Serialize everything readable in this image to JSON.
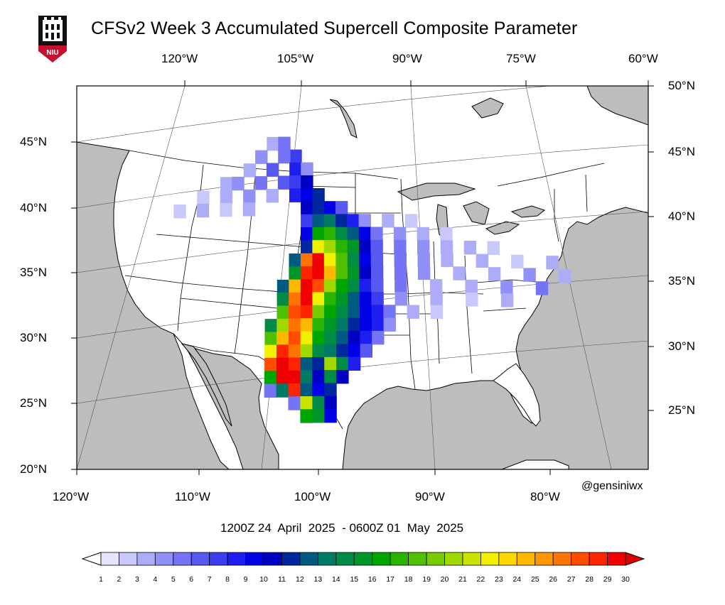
{
  "header": {
    "title": "CFSv2 Week 3 Accumulated Supercell Composite Parameter",
    "logo_text": "NIU",
    "logo_colors": {
      "red": "#c8102e",
      "black": "#111111"
    }
  },
  "map": {
    "projection": "lambert-conformal",
    "region": "Continental United States",
    "ocean_color": "#bdbdbd",
    "land_color": "#ffffff",
    "border_color": "#000000",
    "top_lon_labels": [
      "120°W",
      "105°W",
      "90°W",
      "75°W",
      "60°W"
    ],
    "bottom_lon_labels": [
      "120°W",
      "110°W",
      "100°W",
      "90°W",
      "80°W"
    ],
    "left_lat_labels": [
      "45°N",
      "40°N",
      "35°N",
      "30°N",
      "25°N",
      "20°N"
    ],
    "right_lat_labels": [
      "50°N",
      "45°N",
      "40°N",
      "35°N",
      "30°N",
      "25°N"
    ]
  },
  "period": "1200Z 24  April  2025  - 0600Z 01  May  2025",
  "credit": "@gensiniwx",
  "colorbar": {
    "labels": [
      "1",
      "2",
      "3",
      "4",
      "5",
      "6",
      "7",
      "8",
      "9",
      "10",
      "11",
      "12",
      "13",
      "14",
      "15",
      "16",
      "17",
      "18",
      "19",
      "20",
      "21",
      "22",
      "23",
      "24",
      "25",
      "26",
      "27",
      "28",
      "29",
      "30"
    ],
    "colors": [
      "#ffffff",
      "#e4e4fc",
      "#c8c8fa",
      "#acacf8",
      "#9090f6",
      "#7474f4",
      "#5858f2",
      "#3c3cf0",
      "#1e1ef0",
      "#0000e6",
      "#0000c4",
      "#00289e",
      "#005a82",
      "#007a64",
      "#008c46",
      "#009628",
      "#00a600",
      "#28b400",
      "#50c000",
      "#78cc00",
      "#a0d800",
      "#c8e400",
      "#f0f000",
      "#ffd800",
      "#ffb800",
      "#ff9800",
      "#ff7400",
      "#ff4c00",
      "#ff2400",
      "#f00000",
      "#dc0000"
    ]
  },
  "scp_field": {
    "units": "accumulated SCP",
    "blocks": [
      {
        "lon": -104,
        "lat": 45,
        "v": 3
      },
      {
        "lon": -103,
        "lat": 45,
        "v": 5
      },
      {
        "lon": -102,
        "lat": 44,
        "v": 7
      },
      {
        "lon": -103,
        "lat": 44,
        "v": 5
      },
      {
        "lon": -105,
        "lat": 44,
        "v": 4
      },
      {
        "lon": -106,
        "lat": 43,
        "v": 3
      },
      {
        "lon": -104,
        "lat": 43,
        "v": 6
      },
      {
        "lon": -102,
        "lat": 43,
        "v": 8
      },
      {
        "lon": -101,
        "lat": 43,
        "v": 4
      },
      {
        "lon": -108,
        "lat": 42,
        "v": 3
      },
      {
        "lon": -107,
        "lat": 42,
        "v": 4
      },
      {
        "lon": -105,
        "lat": 42,
        "v": 5
      },
      {
        "lon": -103,
        "lat": 42,
        "v": 6
      },
      {
        "lon": -102,
        "lat": 42,
        "v": 7
      },
      {
        "lon": -101,
        "lat": 42,
        "v": 10
      },
      {
        "lon": -110,
        "lat": 41,
        "v": 2
      },
      {
        "lon": -108,
        "lat": 41,
        "v": 3
      },
      {
        "lon": -106,
        "lat": 41,
        "v": 4
      },
      {
        "lon": -104,
        "lat": 41,
        "v": 3
      },
      {
        "lon": -102,
        "lat": 41,
        "v": 8
      },
      {
        "lon": -101,
        "lat": 41,
        "v": 9
      },
      {
        "lon": -100,
        "lat": 41,
        "v": 11
      },
      {
        "lon": -112,
        "lat": 40,
        "v": 2
      },
      {
        "lon": -110,
        "lat": 40,
        "v": 3
      },
      {
        "lon": -108,
        "lat": 40,
        "v": 2
      },
      {
        "lon": -106,
        "lat": 40,
        "v": 3
      },
      {
        "lon": -101,
        "lat": 40,
        "v": 10
      },
      {
        "lon": -100,
        "lat": 40,
        "v": 11
      },
      {
        "lon": -99,
        "lat": 40,
        "v": 9
      },
      {
        "lon": -98,
        "lat": 40,
        "v": 6
      },
      {
        "lon": -101,
        "lat": 39,
        "v": 7
      },
      {
        "lon": -100,
        "lat": 39,
        "v": 12
      },
      {
        "lon": -99,
        "lat": 39,
        "v": 13
      },
      {
        "lon": -98,
        "lat": 39,
        "v": 11
      },
      {
        "lon": -97,
        "lat": 39,
        "v": 8
      },
      {
        "lon": -96,
        "lat": 39,
        "v": 4
      },
      {
        "lon": -94,
        "lat": 39,
        "v": 3
      },
      {
        "lon": -92,
        "lat": 39,
        "v": 2
      },
      {
        "lon": -101,
        "lat": 38,
        "v": 9
      },
      {
        "lon": -100,
        "lat": 38,
        "v": 16
      },
      {
        "lon": -99,
        "lat": 38,
        "v": 17
      },
      {
        "lon": -98,
        "lat": 38,
        "v": 14
      },
      {
        "lon": -97,
        "lat": 38,
        "v": 12
      },
      {
        "lon": -96,
        "lat": 38,
        "v": 9
      },
      {
        "lon": -95,
        "lat": 38,
        "v": 5
      },
      {
        "lon": -93,
        "lat": 38,
        "v": 4
      },
      {
        "lon": -91,
        "lat": 38,
        "v": 3
      },
      {
        "lon": -89,
        "lat": 38,
        "v": 2
      },
      {
        "lon": -101,
        "lat": 37,
        "v": 11
      },
      {
        "lon": -100,
        "lat": 37,
        "v": 22
      },
      {
        "lon": -99,
        "lat": 37,
        "v": 20
      },
      {
        "lon": -98,
        "lat": 37,
        "v": 17
      },
      {
        "lon": -97,
        "lat": 37,
        "v": 15
      },
      {
        "lon": -96,
        "lat": 37,
        "v": 10
      },
      {
        "lon": -95,
        "lat": 37,
        "v": 6
      },
      {
        "lon": -93,
        "lat": 37,
        "v": 5
      },
      {
        "lon": -91,
        "lat": 37,
        "v": 4
      },
      {
        "lon": -89,
        "lat": 37,
        "v": 3
      },
      {
        "lon": -87,
        "lat": 37,
        "v": 3
      },
      {
        "lon": -85,
        "lat": 37,
        "v": 2
      },
      {
        "lon": -102,
        "lat": 36,
        "v": 12
      },
      {
        "lon": -101,
        "lat": 36,
        "v": 26
      },
      {
        "lon": -100,
        "lat": 36,
        "v": 29
      },
      {
        "lon": -99,
        "lat": 36,
        "v": 22
      },
      {
        "lon": -98,
        "lat": 36,
        "v": 18
      },
      {
        "lon": -97,
        "lat": 36,
        "v": 14
      },
      {
        "lon": -96,
        "lat": 36,
        "v": 9
      },
      {
        "lon": -95,
        "lat": 36,
        "v": 6
      },
      {
        "lon": -93,
        "lat": 36,
        "v": 5
      },
      {
        "lon": -91,
        "lat": 36,
        "v": 4
      },
      {
        "lon": -89,
        "lat": 36,
        "v": 3
      },
      {
        "lon": -86,
        "lat": 36,
        "v": 3
      },
      {
        "lon": -83,
        "lat": 36,
        "v": 2
      },
      {
        "lon": -80,
        "lat": 36,
        "v": 3
      },
      {
        "lon": -102,
        "lat": 35,
        "v": 15
      },
      {
        "lon": -101,
        "lat": 35,
        "v": 28
      },
      {
        "lon": -100,
        "lat": 35,
        "v": 29
      },
      {
        "lon": -99,
        "lat": 35,
        "v": 24
      },
      {
        "lon": -98,
        "lat": 35,
        "v": 18
      },
      {
        "lon": -97,
        "lat": 35,
        "v": 15
      },
      {
        "lon": -96,
        "lat": 35,
        "v": 10
      },
      {
        "lon": -95,
        "lat": 35,
        "v": 6
      },
      {
        "lon": -93,
        "lat": 35,
        "v": 5
      },
      {
        "lon": -91,
        "lat": 35,
        "v": 4
      },
      {
        "lon": -88,
        "lat": 35,
        "v": 3
      },
      {
        "lon": -85,
        "lat": 35,
        "v": 3
      },
      {
        "lon": -82,
        "lat": 35,
        "v": 4
      },
      {
        "lon": -79,
        "lat": 35,
        "v": 3
      },
      {
        "lon": -103,
        "lat": 34,
        "v": 12
      },
      {
        "lon": -102,
        "lat": 34,
        "v": 24
      },
      {
        "lon": -101,
        "lat": 34,
        "v": 29
      },
      {
        "lon": -100,
        "lat": 34,
        "v": 27
      },
      {
        "lon": -99,
        "lat": 34,
        "v": 20
      },
      {
        "lon": -98,
        "lat": 34,
        "v": 16
      },
      {
        "lon": -97,
        "lat": 34,
        "v": 14
      },
      {
        "lon": -96,
        "lat": 34,
        "v": 8
      },
      {
        "lon": -95,
        "lat": 34,
        "v": 6
      },
      {
        "lon": -93,
        "lat": 34,
        "v": 5
      },
      {
        "lon": -90,
        "lat": 34,
        "v": 3
      },
      {
        "lon": -87,
        "lat": 34,
        "v": 3
      },
      {
        "lon": -84,
        "lat": 34,
        "v": 4
      },
      {
        "lon": -81,
        "lat": 34,
        "v": 5
      },
      {
        "lon": -103,
        "lat": 33,
        "v": 14
      },
      {
        "lon": -102,
        "lat": 33,
        "v": 26
      },
      {
        "lon": -101,
        "lat": 33,
        "v": 29
      },
      {
        "lon": -100,
        "lat": 33,
        "v": 22
      },
      {
        "lon": -99,
        "lat": 33,
        "v": 17
      },
      {
        "lon": -98,
        "lat": 33,
        "v": 15
      },
      {
        "lon": -97,
        "lat": 33,
        "v": 12
      },
      {
        "lon": -96,
        "lat": 33,
        "v": 9
      },
      {
        "lon": -95,
        "lat": 33,
        "v": 7
      },
      {
        "lon": -93,
        "lat": 33,
        "v": 4
      },
      {
        "lon": -90,
        "lat": 33,
        "v": 3
      },
      {
        "lon": -87,
        "lat": 33,
        "v": 2
      },
      {
        "lon": -84,
        "lat": 33,
        "v": 3
      },
      {
        "lon": -103,
        "lat": 32,
        "v": 18
      },
      {
        "lon": -102,
        "lat": 32,
        "v": 27
      },
      {
        "lon": -101,
        "lat": 32,
        "v": 28
      },
      {
        "lon": -100,
        "lat": 32,
        "v": 19
      },
      {
        "lon": -99,
        "lat": 32,
        "v": 16
      },
      {
        "lon": -98,
        "lat": 32,
        "v": 14
      },
      {
        "lon": -97,
        "lat": 32,
        "v": 12
      },
      {
        "lon": -96,
        "lat": 32,
        "v": 9
      },
      {
        "lon": -95,
        "lat": 32,
        "v": 8
      },
      {
        "lon": -94,
        "lat": 32,
        "v": 5
      },
      {
        "lon": -92,
        "lat": 32,
        "v": 3
      },
      {
        "lon": -90,
        "lat": 32,
        "v": 2
      },
      {
        "lon": -104,
        "lat": 31,
        "v": 14
      },
      {
        "lon": -103,
        "lat": 31,
        "v": 20
      },
      {
        "lon": -102,
        "lat": 31,
        "v": 26
      },
      {
        "lon": -101,
        "lat": 31,
        "v": 24
      },
      {
        "lon": -100,
        "lat": 31,
        "v": 17
      },
      {
        "lon": -99,
        "lat": 31,
        "v": 15
      },
      {
        "lon": -98,
        "lat": 31,
        "v": 13
      },
      {
        "lon": -97,
        "lat": 31,
        "v": 11
      },
      {
        "lon": -96,
        "lat": 31,
        "v": 9
      },
      {
        "lon": -95,
        "lat": 31,
        "v": 8
      },
      {
        "lon": -94,
        "lat": 31,
        "v": 4
      },
      {
        "lon": -104,
        "lat": 30,
        "v": 18
      },
      {
        "lon": -103,
        "lat": 30,
        "v": 24
      },
      {
        "lon": -102,
        "lat": 30,
        "v": 27
      },
      {
        "lon": -101,
        "lat": 30,
        "v": 22
      },
      {
        "lon": -100,
        "lat": 30,
        "v": 16
      },
      {
        "lon": -99,
        "lat": 30,
        "v": 14
      },
      {
        "lon": -98,
        "lat": 30,
        "v": 12
      },
      {
        "lon": -97,
        "lat": 30,
        "v": 10
      },
      {
        "lon": -96,
        "lat": 30,
        "v": 8
      },
      {
        "lon": -95,
        "lat": 30,
        "v": 5
      },
      {
        "lon": -104,
        "lat": 29,
        "v": 22
      },
      {
        "lon": -103,
        "lat": 29,
        "v": 28
      },
      {
        "lon": -102,
        "lat": 29,
        "v": 26
      },
      {
        "lon": -101,
        "lat": 29,
        "v": 20
      },
      {
        "lon": -100,
        "lat": 29,
        "v": 14
      },
      {
        "lon": -99,
        "lat": 29,
        "v": 13
      },
      {
        "lon": -98,
        "lat": 29,
        "v": 11
      },
      {
        "lon": -97,
        "lat": 29,
        "v": 9
      },
      {
        "lon": -96,
        "lat": 29,
        "v": 6
      },
      {
        "lon": -104,
        "lat": 28,
        "v": 27
      },
      {
        "lon": -103,
        "lat": 28,
        "v": 29
      },
      {
        "lon": -102,
        "lat": 28,
        "v": 28
      },
      {
        "lon": -101,
        "lat": 28,
        "v": 12
      },
      {
        "lon": -100,
        "lat": 28,
        "v": 11
      },
      {
        "lon": -99,
        "lat": 28,
        "v": 20
      },
      {
        "lon": -98,
        "lat": 28,
        "v": 14
      },
      {
        "lon": -97,
        "lat": 28,
        "v": 8
      },
      {
        "lon": -104,
        "lat": 27,
        "v": 16
      },
      {
        "lon": -103,
        "lat": 27,
        "v": 29
      },
      {
        "lon": -102,
        "lat": 27,
        "v": 29
      },
      {
        "lon": -101,
        "lat": 27,
        "v": 13
      },
      {
        "lon": -100,
        "lat": 27,
        "v": 10
      },
      {
        "lon": -99,
        "lat": 27,
        "v": 14
      },
      {
        "lon": -98,
        "lat": 27,
        "v": 10
      },
      {
        "lon": -104,
        "lat": 26,
        "v": 5
      },
      {
        "lon": -103,
        "lat": 26,
        "v": 13
      },
      {
        "lon": -102,
        "lat": 26,
        "v": 28
      },
      {
        "lon": -101,
        "lat": 26,
        "v": 12
      },
      {
        "lon": -100,
        "lat": 26,
        "v": 9
      },
      {
        "lon": -99,
        "lat": 26,
        "v": 11
      },
      {
        "lon": -102,
        "lat": 25,
        "v": 5
      },
      {
        "lon": -101,
        "lat": 25,
        "v": 21
      },
      {
        "lon": -100,
        "lat": 25,
        "v": 14
      },
      {
        "lon": -99,
        "lat": 25,
        "v": 10
      },
      {
        "lon": -101,
        "lat": 24,
        "v": 16
      },
      {
        "lon": -100,
        "lat": 24,
        "v": 15
      },
      {
        "lon": -99,
        "lat": 24,
        "v": 9
      }
    ]
  }
}
